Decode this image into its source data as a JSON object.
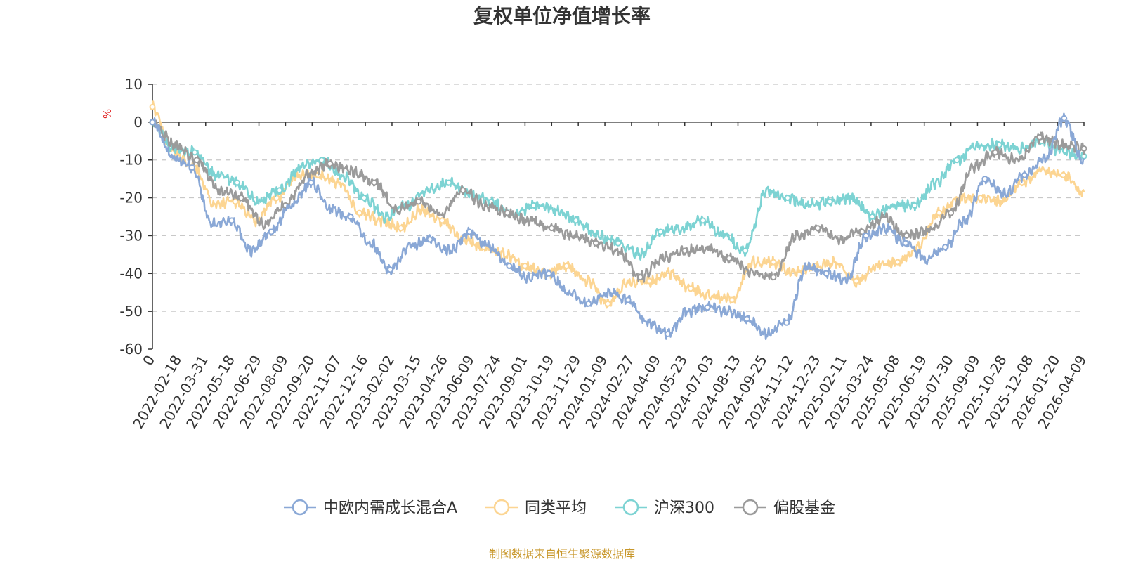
{
  "colors": {
    "text": "#333333",
    "axis": "#333333",
    "grid": "#c8c8c8",
    "unit": "#e02020",
    "source": "#c8972a"
  },
  "chart_data": {
    "type": "line",
    "title": "复权单位净值增长率",
    "ylabel": "%",
    "ylim": [
      -60,
      10
    ],
    "yticks": [
      10,
      0,
      -10,
      -20,
      -30,
      -40,
      -50,
      -60
    ],
    "grid": true,
    "legend_position": "bottom-center",
    "x_ticks": [
      "0",
      "2022-02-18",
      "2022-03-31",
      "2022-05-18",
      "2022-06-29",
      "2022-08-09",
      "2022-09-20",
      "2022-11-07",
      "2022-12-16",
      "2023-02-02",
      "2023-03-15",
      "2023-04-26",
      "2023-06-09",
      "2023-07-24",
      "2023-09-01",
      "2023-10-19",
      "2023-11-29",
      "2024-01-09",
      "2024-02-27",
      "2024-04-09",
      "2024-05-23",
      "2024-07-03",
      "2024-08-13",
      "2024-09-25",
      "2024-11-12",
      "2024-12-23",
      "2025-02-11",
      "2025-03-24",
      "2025-05-08",
      "2025-06-19",
      "2025-07-30",
      "2025-09-09",
      "2025-10-28",
      "2025-12-08",
      "2026-01-20",
      "2026-04-09"
    ],
    "series": [
      {
        "name": "中欧内需成长混合A",
        "color": "#8aa8d6",
        "values": [
          0,
          -9,
          -12,
          -27,
          -26,
          -34,
          -29,
          -22,
          -16,
          -23,
          -25,
          -32,
          -39,
          -33,
          -31,
          -34,
          -29,
          -33,
          -38,
          -41,
          -40,
          -45,
          -48,
          -45,
          -47,
          -53,
          -56,
          -50,
          -49,
          -50,
          -52,
          -56,
          -53,
          -38,
          -40,
          -42,
          -30,
          -28,
          -32,
          -36,
          -33,
          -26,
          -15,
          -19,
          -14,
          -10,
          1,
          -11
        ]
      },
      {
        "name": "同类平均",
        "color": "#fcd592",
        "values": [
          4,
          -8,
          -12,
          -22,
          -21,
          -26,
          -20,
          -14,
          -14,
          -16,
          -24,
          -26,
          -28,
          -23,
          -26,
          -31,
          -33,
          -35,
          -38,
          -40,
          -38,
          -42,
          -48,
          -42,
          -42,
          -40,
          -44,
          -46,
          -47,
          -37,
          -37,
          -40,
          -38,
          -37,
          -42,
          -38,
          -37,
          -33,
          -24,
          -20,
          -20,
          -21,
          -16,
          -13,
          -14,
          -19
        ]
      },
      {
        "name": "沪深300",
        "color": "#7dd3d3",
        "values": [
          0,
          -7,
          -8,
          -14,
          -16,
          -21,
          -18,
          -12,
          -10,
          -14,
          -20,
          -25,
          -22,
          -18,
          -16,
          -19,
          -21,
          -25,
          -22,
          -23,
          -26,
          -30,
          -32,
          -35,
          -29,
          -28,
          -26,
          -30,
          -34,
          -18,
          -20,
          -22,
          -21,
          -20,
          -25,
          -22,
          -22,
          -16,
          -10,
          -6,
          -6,
          -7,
          -5,
          -8,
          -9
        ]
      },
      {
        "name": "偏股基金",
        "color": "#9b9b9b",
        "values": [
          0,
          -6,
          -10,
          -18,
          -20,
          -27,
          -22,
          -14,
          -11,
          -13,
          -16,
          -23,
          -21,
          -24,
          -18,
          -22,
          -24,
          -26,
          -28,
          -30,
          -32,
          -34,
          -41,
          -36,
          -34,
          -33,
          -36,
          -40,
          -41,
          -30,
          -28,
          -31,
          -29,
          -25,
          -30,
          -29,
          -24,
          -12,
          -8,
          -10,
          -4,
          -6,
          -7
        ]
      }
    ]
  },
  "legend": {
    "items": [
      {
        "label": "中欧内需成长混合A"
      },
      {
        "label": "同类平均"
      },
      {
        "label": "沪深300"
      },
      {
        "label": "偏股基金"
      }
    ]
  },
  "footer": {
    "source": "制图数据来自恒生聚源数据库"
  }
}
